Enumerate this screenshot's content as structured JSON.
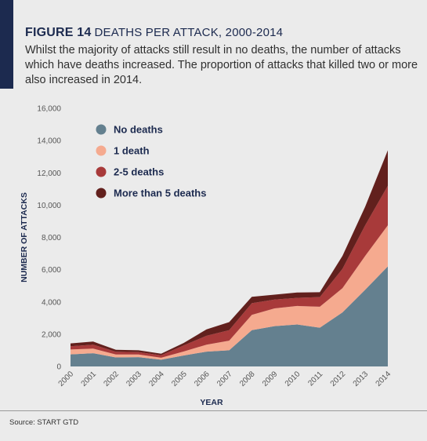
{
  "figure": {
    "label": "FIGURE 14",
    "name": "DEATHS PER ATTACK, 2000-2014",
    "subtitle": "Whilst the majority of attacks still result in no deaths, the number of attacks which have deaths increased. The proportion of attacks that killed two or more also increased in 2014."
  },
  "colors": {
    "accent": "#1c2a4f",
    "background": "#ebebeb"
  },
  "source": "Source: START GTD",
  "chart_data": {
    "type": "area",
    "stacked": true,
    "title": "",
    "xlabel": "YEAR",
    "ylabel": "NUMBER OF ATTACKS",
    "ylim": [
      0,
      16000
    ],
    "yticks": [
      0,
      2000,
      4000,
      6000,
      8000,
      10000,
      12000,
      14000,
      16000
    ],
    "ytick_labels": [
      "0",
      "2,000",
      "4,000",
      "6,000",
      "8,000",
      "10,000",
      "12,000",
      "14,000",
      "16,000"
    ],
    "x": [
      "2000",
      "2001",
      "2002",
      "2003",
      "2004",
      "2005",
      "2006",
      "2007",
      "2008",
      "2009",
      "2010",
      "2011",
      "2012",
      "2013",
      "2014"
    ],
    "grid": false,
    "legend_position": "top-left",
    "series": [
      {
        "name": "No deaths",
        "color": "#64808f",
        "values": [
          750,
          820,
          560,
          580,
          420,
          680,
          920,
          1000,
          2250,
          2500,
          2600,
          2400,
          3350,
          4750,
          6200
        ]
      },
      {
        "name": "1 death",
        "color": "#f5aa8f",
        "values": [
          300,
          290,
          180,
          160,
          120,
          250,
          430,
          600,
          950,
          1100,
          1150,
          1300,
          1500,
          2100,
          2550
        ]
      },
      {
        "name": "2-5 deaths",
        "color": "#a83a3a",
        "values": [
          200,
          240,
          170,
          150,
          150,
          380,
          550,
          650,
          720,
          550,
          500,
          600,
          1200,
          1900,
          2450
        ]
      },
      {
        "name": "More than 5 deaths",
        "color": "#62201d",
        "values": [
          180,
          190,
          120,
          110,
          100,
          150,
          400,
          500,
          400,
          300,
          330,
          300,
          800,
          1150,
          2200
        ]
      }
    ]
  }
}
